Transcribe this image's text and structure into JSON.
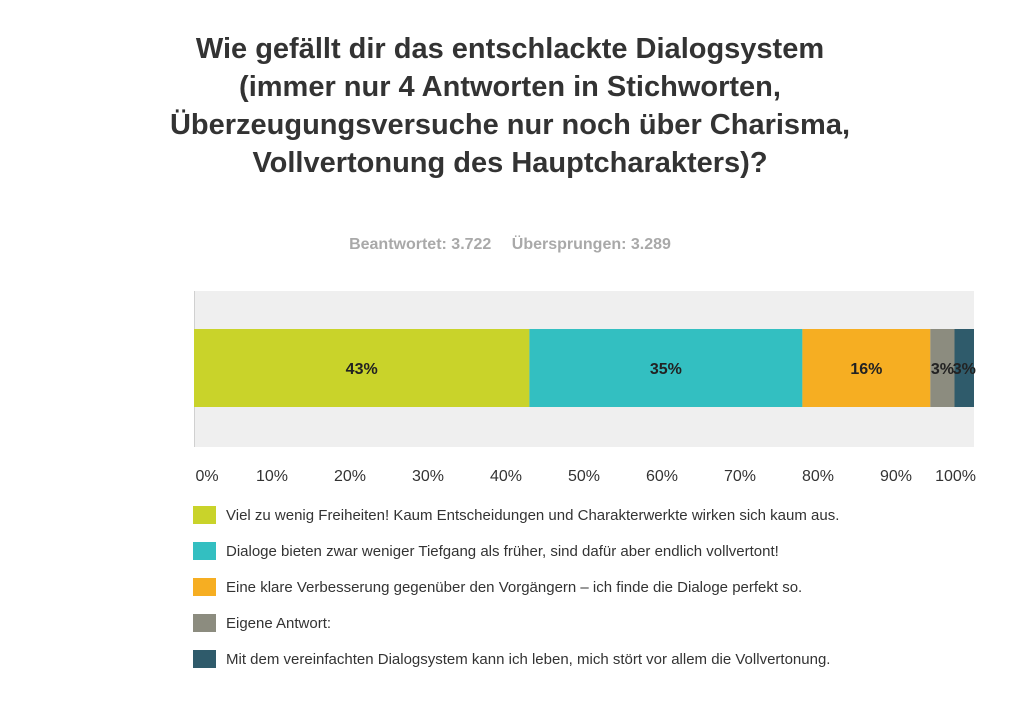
{
  "stats": {
    "answered": "Beantwortet: 3.722",
    "skipped": "Übersprungen: 3.289"
  },
  "chart_data": {
    "type": "bar",
    "orientation": "horizontal-stacked-100",
    "title": "Wie gefällt dir das entschlackte Dialogsystem (immer nur 4 Antworten in Stichworten, Überzeugungsversuche nur noch über Charisma, Vollvertonung des Hauptcharakters)?",
    "xlim": [
      0,
      100
    ],
    "xticks": [
      "0%",
      "10%",
      "20%",
      "30%",
      "40%",
      "50%",
      "60%",
      "70%",
      "80%",
      "90%",
      "100%"
    ],
    "grid": false,
    "legend_position": "bottom",
    "series": [
      {
        "name": "Viel zu wenig Freiheiten! Kaum Entscheidungen und Charakterwerkte wirken sich kaum aus.",
        "value": 43,
        "label": "43%",
        "color": "#c9d32a"
      },
      {
        "name": "Dialoge bieten zwar weniger Tiefgang als früher, sind dafür aber endlich vollvertont!",
        "value": 35,
        "label": "35%",
        "color": "#33bfc1"
      },
      {
        "name": "Eine klare Verbesserung gegenüber den Vorgängern – ich finde die Dialoge perfekt so.",
        "value": 16.4,
        "label": "16%",
        "color": "#f6ae22"
      },
      {
        "name": "Eigene Antwort:",
        "value": 3.1,
        "label": "3%",
        "color": "#8c8c7f"
      },
      {
        "name": "Mit dem vereinfachten Dialogsystem kann ich leben, mich stört vor allem die Vollvertonung.",
        "value": 2.5,
        "label": "3%",
        "color": "#2f5b6b"
      }
    ]
  }
}
